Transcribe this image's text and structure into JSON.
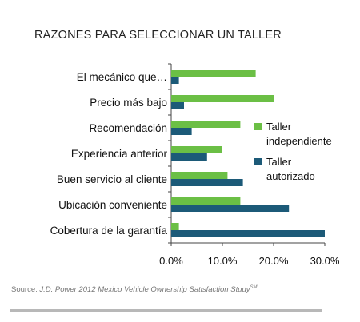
{
  "title": "RAZONES PARA SELECCIONAR UN TALLER",
  "source": {
    "prefix": "Source: ",
    "study": "J.D. Power 2012 Mexico Vehicle Ownership Satisfaction Study",
    "mark": "SM"
  },
  "colors": {
    "independiente": "#6bbf45",
    "autorizado": "#1c5a78",
    "axis": "#444444"
  },
  "chart_data": {
    "type": "bar",
    "orientation": "horizontal",
    "categories": [
      "El mecánico que…",
      "Precio más bajo",
      "Recomendación",
      "Experiencia anterior",
      "Buen servicio al cliente",
      "Ubicación conveniente",
      "Cobertura de la garantía"
    ],
    "series": [
      {
        "name": "Taller independiente",
        "color": "#6bbf45",
        "values": [
          16.5,
          20.0,
          13.5,
          10.0,
          11.0,
          13.5,
          1.5
        ]
      },
      {
        "name": "Taller autorizado",
        "color": "#1c5a78",
        "values": [
          1.5,
          2.5,
          4.0,
          7.0,
          14.0,
          23.0,
          30.0
        ]
      }
    ],
    "legend_labels": [
      [
        "Taller",
        "independiente"
      ],
      [
        "Taller",
        "autorizado"
      ]
    ],
    "x_ticks": [
      "0.0%",
      "10.0%",
      "20.0%",
      "30.0%"
    ],
    "x_tick_values": [
      0,
      10,
      20,
      30
    ],
    "xlim": [
      0,
      30
    ],
    "grid": false,
    "legend_position": "right"
  }
}
